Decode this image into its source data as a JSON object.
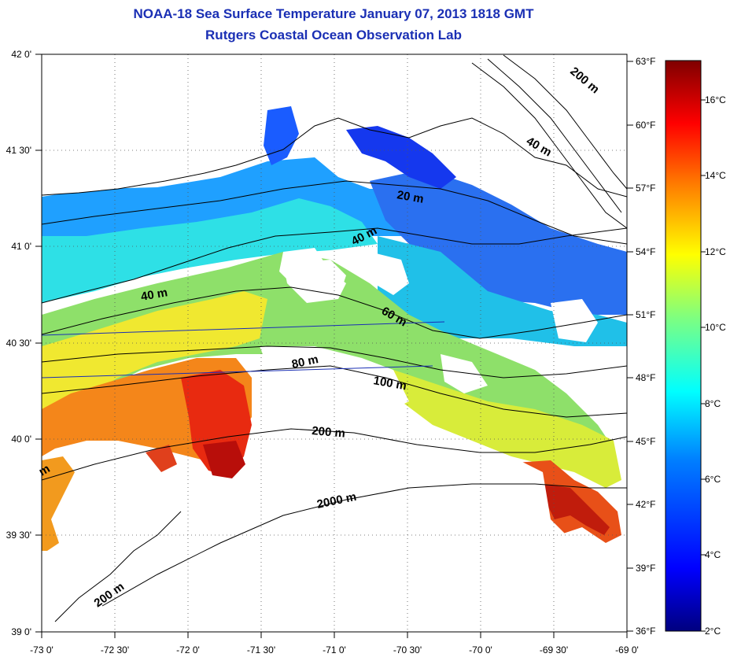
{
  "header": {
    "title": "NOAA-18 Sea Surface Temperature January 07, 2013 1818 GMT",
    "subtitle": "Rutgers Coastal Ocean Observation Lab"
  },
  "axes": {
    "x_ticks": [
      "-73 0'",
      "-72 30'",
      "-72 0'",
      "-71 30'",
      "-71 0'",
      "-70 30'",
      "-70 0'",
      "-69 30'",
      "-69 0'"
    ],
    "y_ticks": [
      "42 0'",
      "41 30'",
      "41 0'",
      "40 30'",
      "40 0'",
      "39 30'",
      "39 0'"
    ],
    "fahrenheit_ticks": [
      "63°F",
      "60°F",
      "57°F",
      "54°F",
      "51°F",
      "48°F",
      "45°F",
      "42°F",
      "39°F",
      "36°F"
    ],
    "celsius_ticks": [
      "16°C",
      "14°C",
      "12°C",
      "10°C",
      "8°C",
      "6°C",
      "4°C",
      "2°C"
    ]
  },
  "contour_labels": [
    "200 m",
    "40 m",
    "20 m",
    "40 m",
    "40 m",
    "60 m",
    "80 m",
    "100 m",
    "200 m",
    "2000 m",
    "200 m",
    "m"
  ],
  "colorbar": {
    "stops": [
      "#00007f",
      "#0000ff",
      "#007fff",
      "#00ffff",
      "#7fff7f",
      "#ffff00",
      "#ff7f00",
      "#ff0000",
      "#7f0000"
    ]
  },
  "colors": {
    "title": "#1a2fb4",
    "grid": "#555555",
    "contour": "#000000",
    "track": "#1a2fb4"
  }
}
